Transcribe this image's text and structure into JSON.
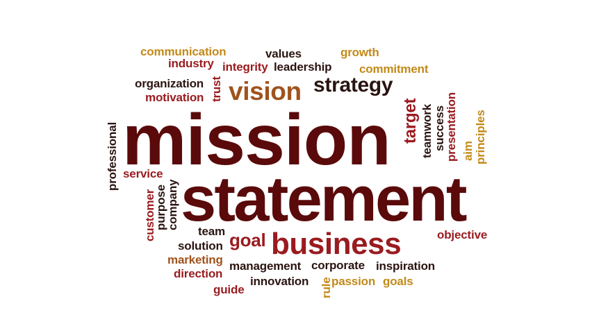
{
  "palette": {
    "maroon": "#5a0a0a",
    "dark_brown": "#3b1a12",
    "red": "#9a1b1f",
    "orange_brown": "#a0521d",
    "gold": "#c28a19",
    "dark": "#2a1410"
  },
  "words": [
    {
      "text": "mission"
    },
    {
      "text": "statement"
    },
    {
      "text": "business"
    },
    {
      "text": "vision"
    },
    {
      "text": "strategy"
    },
    {
      "text": "communication"
    },
    {
      "text": "values"
    },
    {
      "text": "growth"
    },
    {
      "text": "industry"
    },
    {
      "text": "integrity"
    },
    {
      "text": "leadership"
    },
    {
      "text": "commitment"
    },
    {
      "text": "organization"
    },
    {
      "text": "trust"
    },
    {
      "text": "motivation"
    },
    {
      "text": "target"
    },
    {
      "text": "teamwork"
    },
    {
      "text": "success"
    },
    {
      "text": "presentation"
    },
    {
      "text": "aim"
    },
    {
      "text": "principles"
    },
    {
      "text": "professional"
    },
    {
      "text": "service"
    },
    {
      "text": "customer"
    },
    {
      "text": "purpose"
    },
    {
      "text": "company"
    },
    {
      "text": "team"
    },
    {
      "text": "goal"
    },
    {
      "text": "objective"
    },
    {
      "text": "solution"
    },
    {
      "text": "marketing"
    },
    {
      "text": "management"
    },
    {
      "text": "corporate"
    },
    {
      "text": "inspiration"
    },
    {
      "text": "direction"
    },
    {
      "text": "innovation"
    },
    {
      "text": "rule"
    },
    {
      "text": "passion"
    },
    {
      "text": "goals"
    },
    {
      "text": "guide"
    }
  ]
}
